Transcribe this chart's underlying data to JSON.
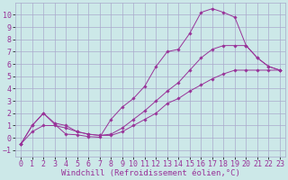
{
  "background_color": "#cce8e8",
  "grid_color": "#aaaacc",
  "line_color": "#993399",
  "marker_color": "#993399",
  "xlabel": "Windchill (Refroidissement éolien,°C)",
  "xlabel_fontsize": 6.5,
  "tick_fontsize": 6.0,
  "xlim": [
    -0.5,
    23.5
  ],
  "ylim": [
    -1.5,
    11.0
  ],
  "xticks": [
    0,
    1,
    2,
    3,
    4,
    5,
    6,
    7,
    8,
    9,
    10,
    11,
    12,
    13,
    14,
    15,
    16,
    17,
    18,
    19,
    20,
    21,
    22,
    23
  ],
  "yticks": [
    -1,
    0,
    1,
    2,
    3,
    4,
    5,
    6,
    7,
    8,
    9,
    10
  ],
  "line1_x": [
    0,
    1,
    2,
    3,
    4,
    5,
    6,
    7,
    8,
    9,
    10,
    11,
    12,
    13,
    14,
    15,
    16,
    17,
    18,
    19,
    20,
    21,
    22,
    23
  ],
  "line1_y": [
    -0.5,
    1.0,
    2.0,
    1.1,
    0.3,
    0.25,
    0.1,
    0.05,
    1.5,
    2.5,
    3.2,
    4.2,
    5.8,
    7.0,
    7.2,
    8.5,
    10.2,
    10.5,
    10.2,
    9.8,
    7.5,
    6.5,
    5.8,
    5.5
  ],
  "line2_x": [
    0,
    1,
    2,
    3,
    4,
    5,
    6,
    7,
    8,
    9,
    10,
    11,
    12,
    13,
    14,
    15,
    16,
    17,
    18,
    19,
    20,
    21,
    22,
    23
  ],
  "line2_y": [
    -0.5,
    1.0,
    2.0,
    1.2,
    1.0,
    0.5,
    0.3,
    0.2,
    0.3,
    0.8,
    1.5,
    2.2,
    3.0,
    3.8,
    4.5,
    5.5,
    6.5,
    7.2,
    7.5,
    7.5,
    7.5,
    6.5,
    5.8,
    5.5
  ],
  "line3_x": [
    0,
    1,
    2,
    3,
    4,
    5,
    6,
    7,
    8,
    9,
    10,
    11,
    12,
    13,
    14,
    15,
    16,
    17,
    18,
    19,
    20,
    21,
    22,
    23
  ],
  "line3_y": [
    -0.5,
    0.5,
    1.0,
    1.0,
    0.8,
    0.5,
    0.3,
    0.2,
    0.2,
    0.5,
    1.0,
    1.5,
    2.0,
    2.8,
    3.2,
    3.8,
    4.3,
    4.8,
    5.2,
    5.5,
    5.5,
    5.5,
    5.5,
    5.5
  ]
}
